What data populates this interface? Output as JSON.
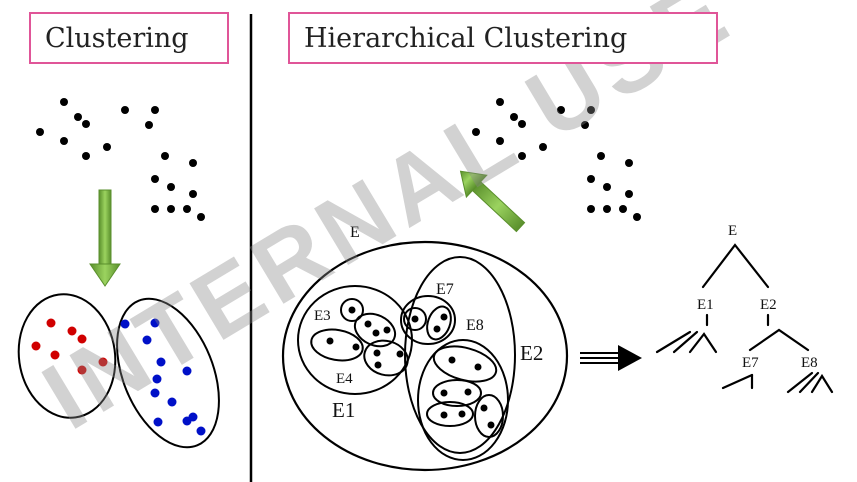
{
  "titles": {
    "clustering": "Clustering",
    "hierarchical": "Hierarchical Clustering"
  },
  "labels": {
    "E": "E",
    "E1": "E1",
    "E2": "E2",
    "E3": "E3",
    "E4": "E4",
    "E7": "E7",
    "E8": "E8"
  },
  "tree": {
    "root": "E",
    "level1": [
      "E1",
      "E2"
    ],
    "level2": [
      "E7",
      "E8"
    ]
  },
  "watermark": "INTERNAL USE",
  "colors": {
    "title_border": "#e05598",
    "arrow_green": "#7ab648",
    "cluster_red": "#d00000",
    "cluster_blue": "#0010c8",
    "dot": "#000000"
  }
}
